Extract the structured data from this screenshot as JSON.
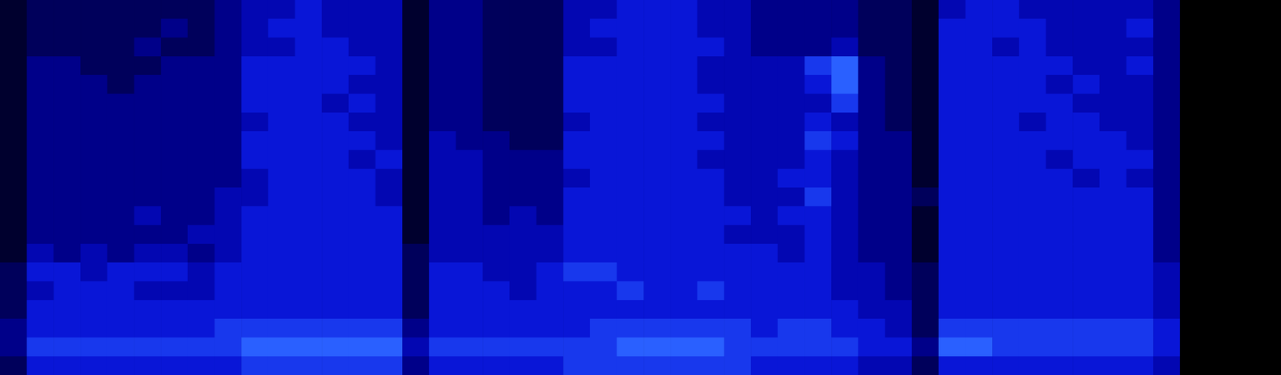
{
  "chart_data": {
    "type": "heatmap",
    "tick_labels": false,
    "cells": [
      [
        1,
        2,
        2,
        2,
        2,
        2,
        2,
        2,
        3,
        4,
        4,
        5,
        4,
        4,
        4,
        1,
        3,
        3,
        2,
        2,
        2,
        4,
        4,
        5,
        5,
        5,
        4,
        4,
        3,
        3,
        3,
        3,
        2,
        2,
        1,
        4,
        5,
        5,
        4,
        4,
        4,
        4,
        4,
        3
      ],
      [
        1,
        2,
        2,
        2,
        2,
        2,
        3,
        2,
        3,
        4,
        5,
        5,
        4,
        4,
        4,
        1,
        3,
        3,
        2,
        2,
        2,
        4,
        5,
        5,
        5,
        5,
        4,
        4,
        3,
        3,
        3,
        3,
        2,
        2,
        1,
        5,
        5,
        5,
        5,
        4,
        4,
        4,
        5,
        3
      ],
      [
        1,
        2,
        2,
        2,
        2,
        3,
        2,
        2,
        3,
        4,
        4,
        5,
        5,
        4,
        4,
        1,
        3,
        3,
        2,
        2,
        2,
        4,
        4,
        5,
        5,
        5,
        5,
        4,
        3,
        3,
        3,
        4,
        2,
        2,
        1,
        5,
        5,
        4,
        5,
        4,
        4,
        4,
        4,
        3
      ],
      [
        1,
        3,
        3,
        2,
        2,
        2,
        3,
        3,
        3,
        5,
        5,
        5,
        5,
        5,
        4,
        1,
        3,
        3,
        2,
        2,
        2,
        5,
        5,
        5,
        5,
        5,
        4,
        4,
        4,
        4,
        6,
        7,
        3,
        2,
        1,
        5,
        5,
        5,
        5,
        5,
        4,
        4,
        5,
        3
      ],
      [
        1,
        3,
        3,
        3,
        2,
        3,
        3,
        3,
        3,
        5,
        5,
        5,
        5,
        4,
        4,
        1,
        3,
        3,
        2,
        2,
        2,
        5,
        5,
        5,
        5,
        5,
        4,
        4,
        4,
        4,
        5,
        7,
        3,
        2,
        1,
        5,
        5,
        5,
        5,
        4,
        5,
        4,
        4,
        3
      ],
      [
        1,
        3,
        3,
        3,
        3,
        3,
        3,
        3,
        3,
        5,
        5,
        5,
        4,
        5,
        4,
        1,
        3,
        3,
        2,
        2,
        2,
        5,
        5,
        5,
        5,
        5,
        5,
        4,
        4,
        4,
        4,
        6,
        3,
        2,
        1,
        5,
        5,
        5,
        5,
        5,
        4,
        4,
        4,
        3
      ],
      [
        1,
        3,
        3,
        3,
        3,
        3,
        3,
        3,
        3,
        4,
        5,
        5,
        5,
        4,
        4,
        1,
        3,
        3,
        2,
        2,
        2,
        4,
        5,
        5,
        5,
        5,
        4,
        4,
        4,
        4,
        5,
        4,
        3,
        2,
        1,
        5,
        5,
        5,
        4,
        5,
        5,
        4,
        4,
        3
      ],
      [
        1,
        3,
        3,
        3,
        3,
        3,
        3,
        3,
        3,
        5,
        5,
        5,
        5,
        5,
        4,
        1,
        4,
        3,
        3,
        2,
        2,
        5,
        5,
        5,
        5,
        5,
        5,
        4,
        4,
        4,
        6,
        5,
        3,
        3,
        1,
        5,
        5,
        5,
        5,
        5,
        5,
        5,
        4,
        3
      ],
      [
        1,
        3,
        3,
        3,
        3,
        3,
        3,
        3,
        3,
        5,
        5,
        5,
        5,
        4,
        5,
        1,
        4,
        4,
        3,
        3,
        3,
        5,
        5,
        5,
        5,
        5,
        4,
        4,
        4,
        4,
        5,
        4,
        3,
        3,
        1,
        5,
        5,
        5,
        5,
        4,
        5,
        5,
        5,
        3
      ],
      [
        1,
        3,
        3,
        3,
        3,
        3,
        3,
        3,
        3,
        4,
        5,
        5,
        5,
        5,
        4,
        1,
        4,
        4,
        3,
        3,
        3,
        4,
        5,
        5,
        5,
        5,
        5,
        4,
        4,
        5,
        5,
        4,
        3,
        3,
        1,
        5,
        5,
        5,
        5,
        5,
        4,
        5,
        4,
        3
      ],
      [
        1,
        3,
        3,
        3,
        3,
        3,
        3,
        3,
        4,
        4,
        5,
        5,
        5,
        5,
        4,
        1,
        4,
        4,
        3,
        3,
        3,
        5,
        5,
        5,
        5,
        5,
        5,
        4,
        4,
        4,
        6,
        4,
        3,
        3,
        2,
        5,
        5,
        5,
        5,
        5,
        5,
        5,
        5,
        3
      ],
      [
        1,
        3,
        3,
        3,
        3,
        4,
        3,
        3,
        4,
        5,
        5,
        5,
        5,
        5,
        5,
        1,
        4,
        4,
        3,
        4,
        3,
        5,
        5,
        5,
        5,
        5,
        5,
        5,
        4,
        5,
        5,
        4,
        3,
        3,
        1,
        5,
        5,
        5,
        5,
        5,
        5,
        5,
        5,
        3
      ],
      [
        1,
        3,
        3,
        3,
        3,
        3,
        3,
        4,
        4,
        5,
        5,
        5,
        5,
        5,
        5,
        1,
        4,
        4,
        4,
        4,
        4,
        5,
        5,
        5,
        5,
        5,
        5,
        4,
        4,
        4,
        5,
        4,
        3,
        3,
        1,
        5,
        5,
        5,
        5,
        5,
        5,
        5,
        5,
        3
      ],
      [
        1,
        4,
        3,
        4,
        3,
        4,
        4,
        3,
        4,
        5,
        5,
        5,
        5,
        5,
        5,
        2,
        4,
        4,
        4,
        4,
        4,
        5,
        5,
        5,
        5,
        5,
        5,
        5,
        5,
        4,
        5,
        4,
        3,
        3,
        1,
        5,
        5,
        5,
        5,
        5,
        5,
        5,
        5,
        3
      ],
      [
        2,
        5,
        5,
        4,
        5,
        5,
        5,
        4,
        5,
        5,
        5,
        5,
        5,
        5,
        5,
        2,
        5,
        5,
        4,
        4,
        5,
        6,
        6,
        5,
        5,
        5,
        5,
        5,
        5,
        5,
        5,
        4,
        4,
        3,
        2,
        5,
        5,
        5,
        5,
        5,
        5,
        5,
        5,
        4
      ],
      [
        2,
        4,
        5,
        5,
        5,
        4,
        4,
        4,
        5,
        5,
        5,
        5,
        5,
        5,
        5,
        2,
        5,
        5,
        5,
        4,
        5,
        5,
        5,
        6,
        5,
        5,
        6,
        5,
        5,
        5,
        5,
        4,
        4,
        3,
        2,
        5,
        5,
        5,
        5,
        5,
        5,
        5,
        5,
        4
      ],
      [
        2,
        5,
        5,
        5,
        5,
        5,
        5,
        5,
        5,
        5,
        5,
        5,
        5,
        5,
        5,
        2,
        5,
        5,
        5,
        5,
        5,
        5,
        5,
        5,
        5,
        5,
        5,
        5,
        5,
        5,
        5,
        5,
        4,
        4,
        2,
        5,
        5,
        5,
        5,
        5,
        5,
        5,
        5,
        4
      ],
      [
        3,
        5,
        5,
        5,
        5,
        5,
        5,
        5,
        6,
        6,
        6,
        6,
        6,
        6,
        6,
        3,
        5,
        5,
        5,
        5,
        5,
        5,
        6,
        6,
        6,
        6,
        6,
        6,
        5,
        6,
        6,
        5,
        5,
        4,
        2,
        6,
        6,
        6,
        6,
        6,
        6,
        6,
        6,
        5
      ],
      [
        3,
        6,
        6,
        6,
        6,
        6,
        6,
        6,
        6,
        7,
        7,
        7,
        7,
        7,
        7,
        4,
        6,
        6,
        6,
        6,
        6,
        6,
        6,
        7,
        7,
        7,
        7,
        6,
        6,
        6,
        6,
        6,
        5,
        5,
        3,
        7,
        7,
        6,
        6,
        6,
        6,
        6,
        6,
        5
      ],
      [
        2,
        5,
        5,
        5,
        5,
        5,
        5,
        5,
        5,
        6,
        6,
        6,
        6,
        6,
        6,
        3,
        5,
        5,
        5,
        5,
        5,
        6,
        6,
        6,
        6,
        6,
        6,
        6,
        5,
        5,
        5,
        5,
        4,
        4,
        2,
        5,
        5,
        5,
        5,
        5,
        5,
        5,
        5,
        4
      ]
    ]
  }
}
